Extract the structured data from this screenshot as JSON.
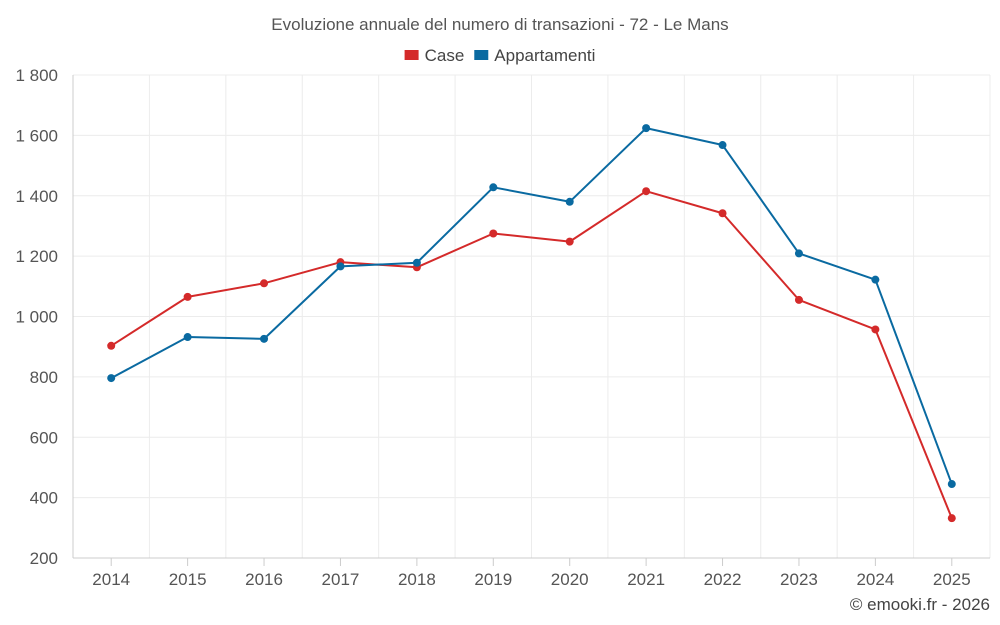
{
  "chart_data": {
    "type": "line",
    "title": "Evoluzione annuale del numero di transazioni - 72 - Le Mans",
    "categories": [
      "2014",
      "2015",
      "2016",
      "2017",
      "2018",
      "2019",
      "2020",
      "2021",
      "2022",
      "2023",
      "2024",
      "2025"
    ],
    "series": [
      {
        "name": "Case",
        "color": "#d42a2a",
        "values": [
          903,
          1065,
          1110,
          1180,
          1163,
          1275,
          1248,
          1415,
          1342,
          1055,
          957,
          332
        ]
      },
      {
        "name": "Appartamenti",
        "color": "#0a6aa1",
        "values": [
          796,
          932,
          926,
          1166,
          1178,
          1428,
          1380,
          1624,
          1568,
          1209,
          1122,
          445
        ]
      }
    ],
    "ylim": [
      200,
      1800
    ],
    "yticks": [
      200,
      400,
      600,
      800,
      1000,
      1200,
      1400,
      1600,
      1800
    ],
    "ytick_labels": [
      "200",
      "400",
      "600",
      "800",
      "1 000",
      "1 200",
      "1 400",
      "1 600",
      "1 800"
    ],
    "xlabel": "",
    "ylabel": "",
    "legend_position": "top-center",
    "grid": true
  },
  "credit": "© emooki.fr - 2026"
}
